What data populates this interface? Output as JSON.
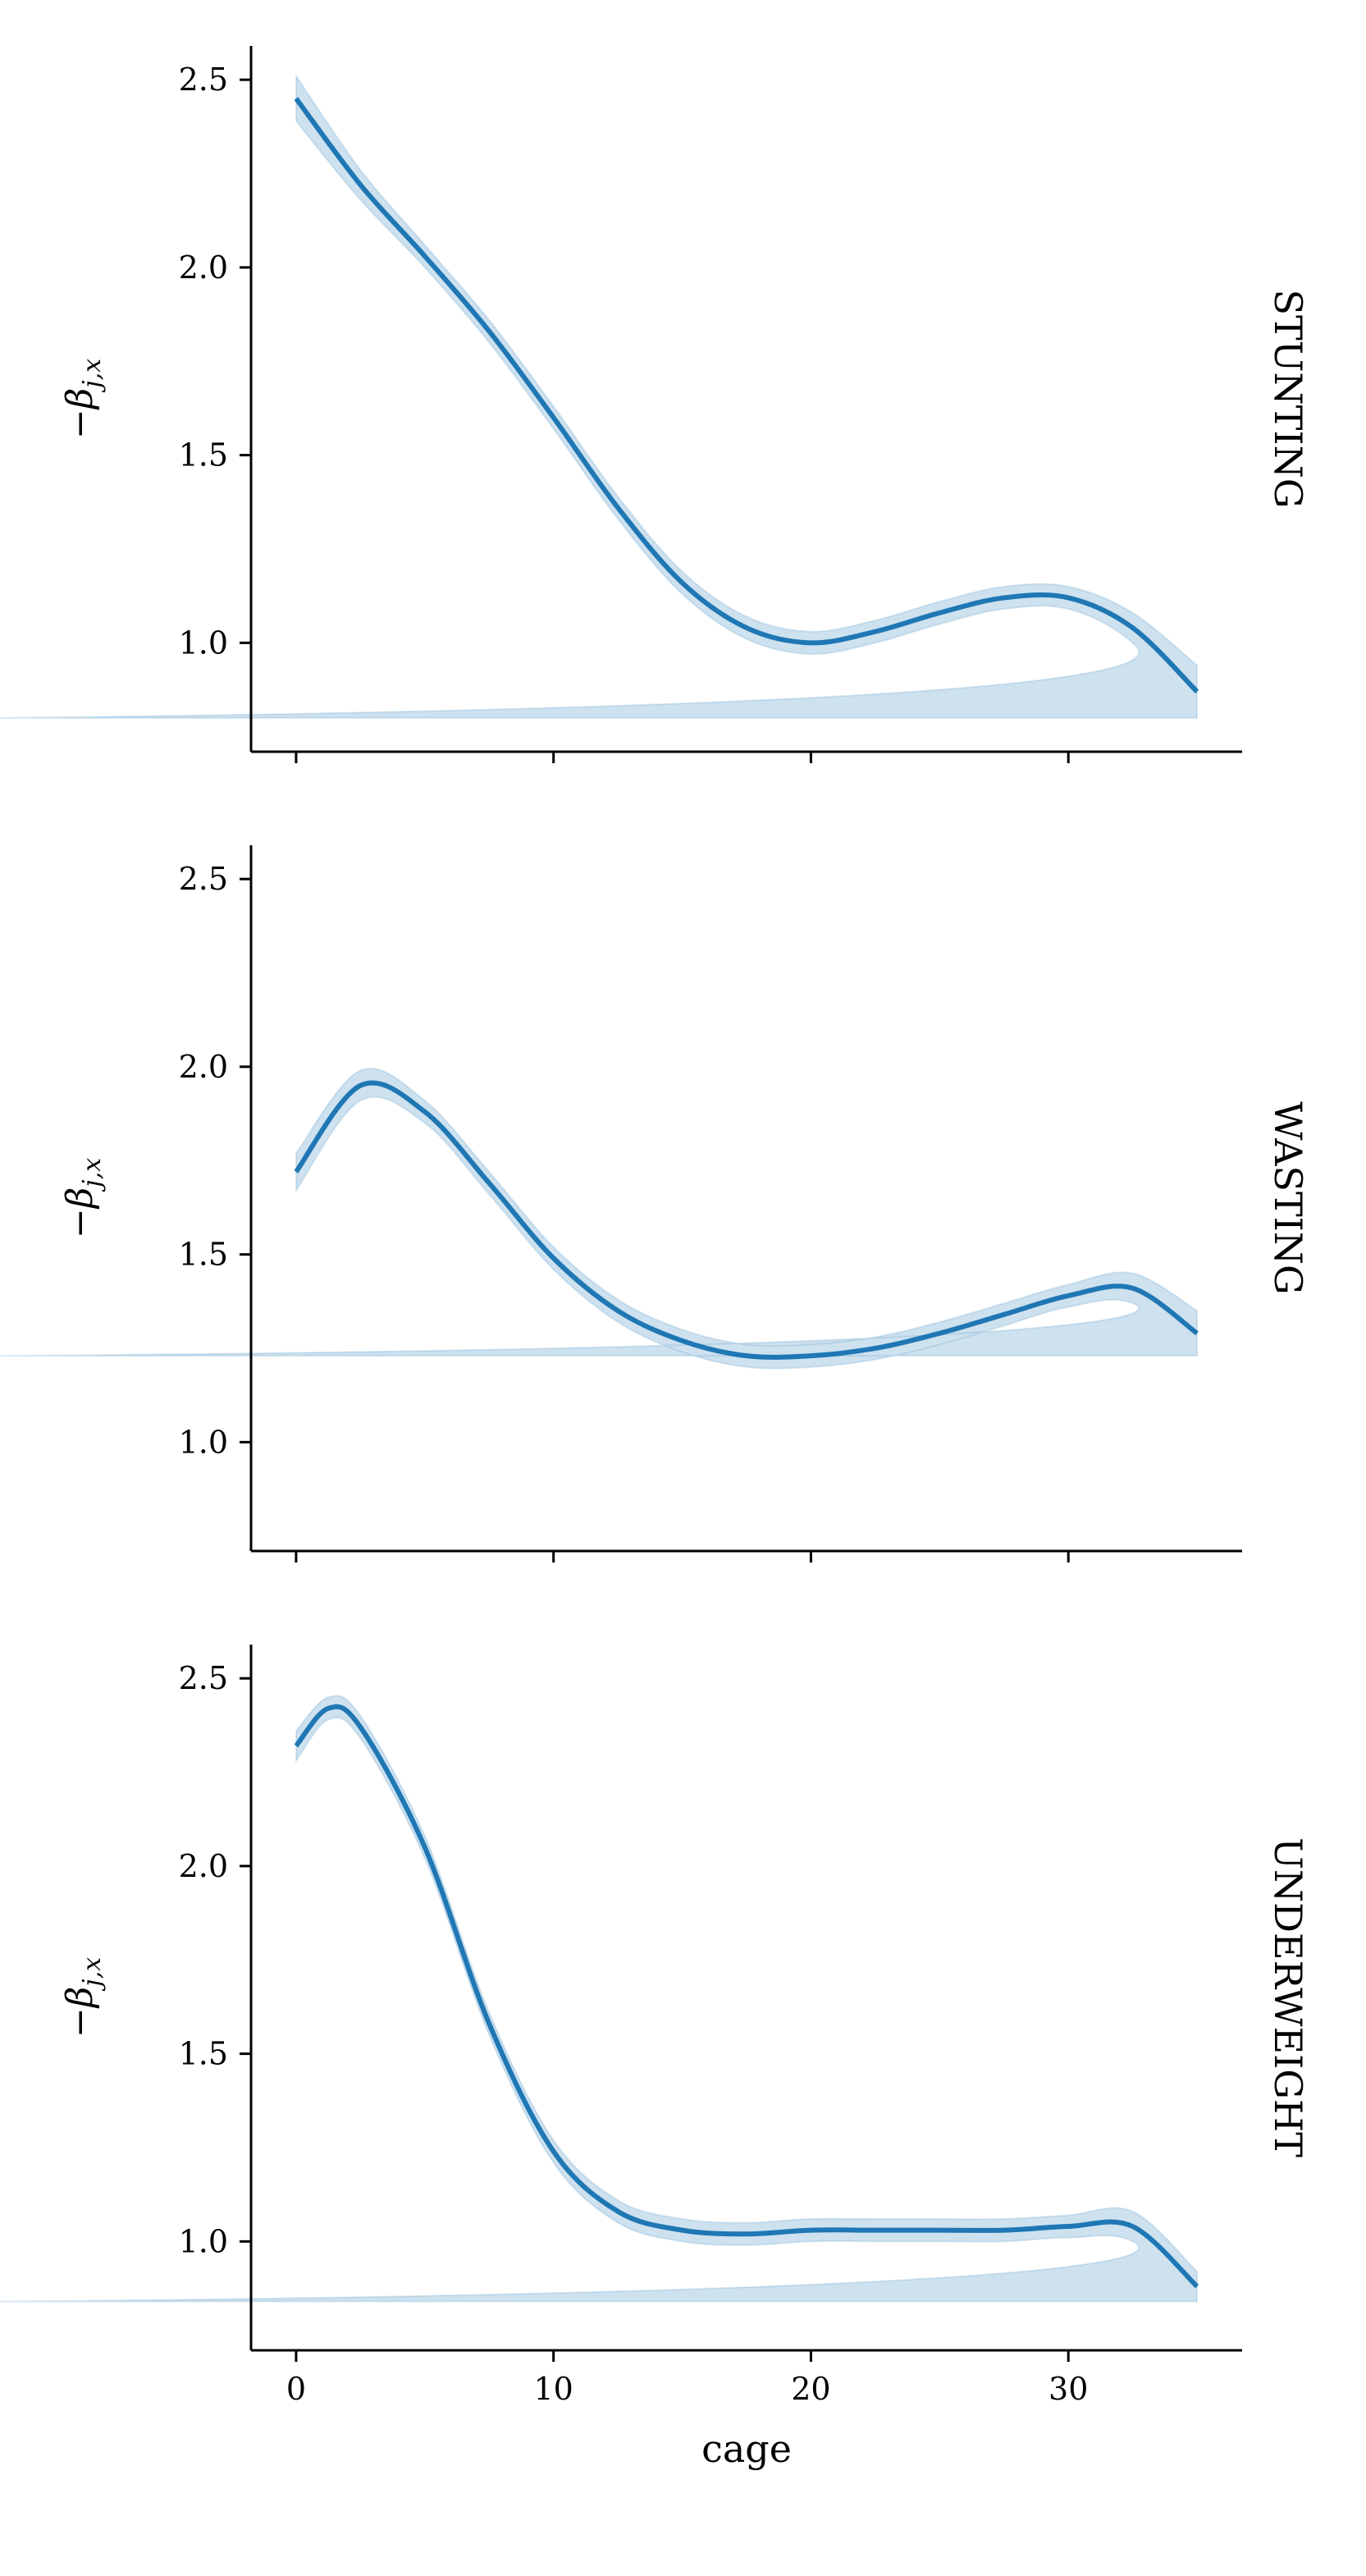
{
  "chart_data": [
    {
      "type": "line",
      "row_label": "STUNTING",
      "ylabel": {
        "main": "−β",
        "sub": "j,x"
      },
      "x": [
        0,
        2.5,
        5,
        7.5,
        10,
        12.5,
        15,
        17.5,
        20,
        22.5,
        25,
        27.5,
        30,
        32.5,
        35
      ],
      "values": [
        2.45,
        2.22,
        2.03,
        1.83,
        1.6,
        1.36,
        1.16,
        1.04,
        1.0,
        1.03,
        1.08,
        1.12,
        1.12,
        1.04,
        0.87
      ],
      "lower": [
        2.39,
        2.18,
        2.0,
        1.8,
        1.57,
        1.33,
        1.13,
        1.01,
        0.97,
        1.0,
        1.05,
        1.09,
        1.09,
        1.0,
        0.8
      ],
      "upper": [
        2.51,
        2.26,
        2.06,
        1.86,
        1.63,
        1.39,
        1.19,
        1.07,
        1.03,
        1.06,
        1.11,
        1.15,
        1.15,
        1.08,
        0.94
      ],
      "color": "#1f77b4",
      "xlim": [
        -1.75,
        36.75
      ],
      "ylim": [
        0.71,
        2.59
      ],
      "xticks": [
        0,
        10,
        20,
        30
      ],
      "show_xticklabels": false,
      "yticks": [
        {
          "value": 1,
          "label": "1.0"
        },
        1.5,
        {
          "value": 2,
          "label": "2.0"
        },
        2.5
      ]
    },
    {
      "type": "line",
      "row_label": "WASTING",
      "ylabel": {
        "main": "−β",
        "sub": "j,x"
      },
      "x": [
        0,
        2.5,
        5,
        7.5,
        10,
        12.5,
        15,
        17.5,
        20,
        22.5,
        25,
        27.5,
        30,
        32.5,
        35
      ],
      "values": [
        1.72,
        1.95,
        1.88,
        1.69,
        1.49,
        1.35,
        1.27,
        1.23,
        1.23,
        1.25,
        1.29,
        1.34,
        1.39,
        1.41,
        1.29
      ],
      "lower": [
        1.67,
        1.91,
        1.85,
        1.66,
        1.46,
        1.32,
        1.24,
        1.2,
        1.2,
        1.22,
        1.26,
        1.31,
        1.36,
        1.37,
        1.23
      ],
      "upper": [
        1.77,
        1.99,
        1.91,
        1.72,
        1.52,
        1.38,
        1.3,
        1.26,
        1.26,
        1.28,
        1.32,
        1.37,
        1.42,
        1.45,
        1.35
      ],
      "color": "#1f77b4",
      "xlim": [
        -1.75,
        36.75
      ],
      "ylim": [
        0.71,
        2.59
      ],
      "xticks": [
        0,
        10,
        20,
        30
      ],
      "show_xticklabels": false,
      "yticks": [
        {
          "value": 1,
          "label": "1.0"
        },
        1.5,
        {
          "value": 2,
          "label": "2.0"
        },
        2.5
      ]
    },
    {
      "type": "line",
      "row_label": "UNDERWEIGHT",
      "ylabel": {
        "main": "−β",
        "sub": "j,x"
      },
      "xlabel": "cage",
      "x": [
        0,
        1.25,
        2.5,
        5,
        7.5,
        10,
        12.5,
        15,
        17.5,
        20,
        22.5,
        25,
        27.5,
        30,
        32.5,
        35
      ],
      "values": [
        2.32,
        2.42,
        2.37,
        2.05,
        1.58,
        1.24,
        1.08,
        1.03,
        1.02,
        1.03,
        1.03,
        1.03,
        1.03,
        1.04,
        1.04,
        0.88
      ],
      "lower": [
        2.28,
        2.39,
        2.34,
        2.02,
        1.55,
        1.21,
        1.05,
        1.0,
        0.99,
        1.0,
        1.0,
        1.0,
        1.0,
        1.01,
        1.0,
        0.84
      ],
      "upper": [
        2.36,
        2.45,
        2.4,
        2.08,
        1.61,
        1.27,
        1.11,
        1.06,
        1.05,
        1.06,
        1.06,
        1.06,
        1.06,
        1.07,
        1.08,
        0.92
      ],
      "color": "#1f77b4",
      "xlim": [
        -1.75,
        36.75
      ],
      "ylim": [
        0.71,
        2.59
      ],
      "xticks": [
        0,
        10,
        20,
        30
      ],
      "show_xticklabels": true,
      "yticks": [
        {
          "value": 1,
          "label": "1.0"
        },
        1.5,
        {
          "value": 2,
          "label": "2.0"
        },
        2.5
      ]
    }
  ]
}
